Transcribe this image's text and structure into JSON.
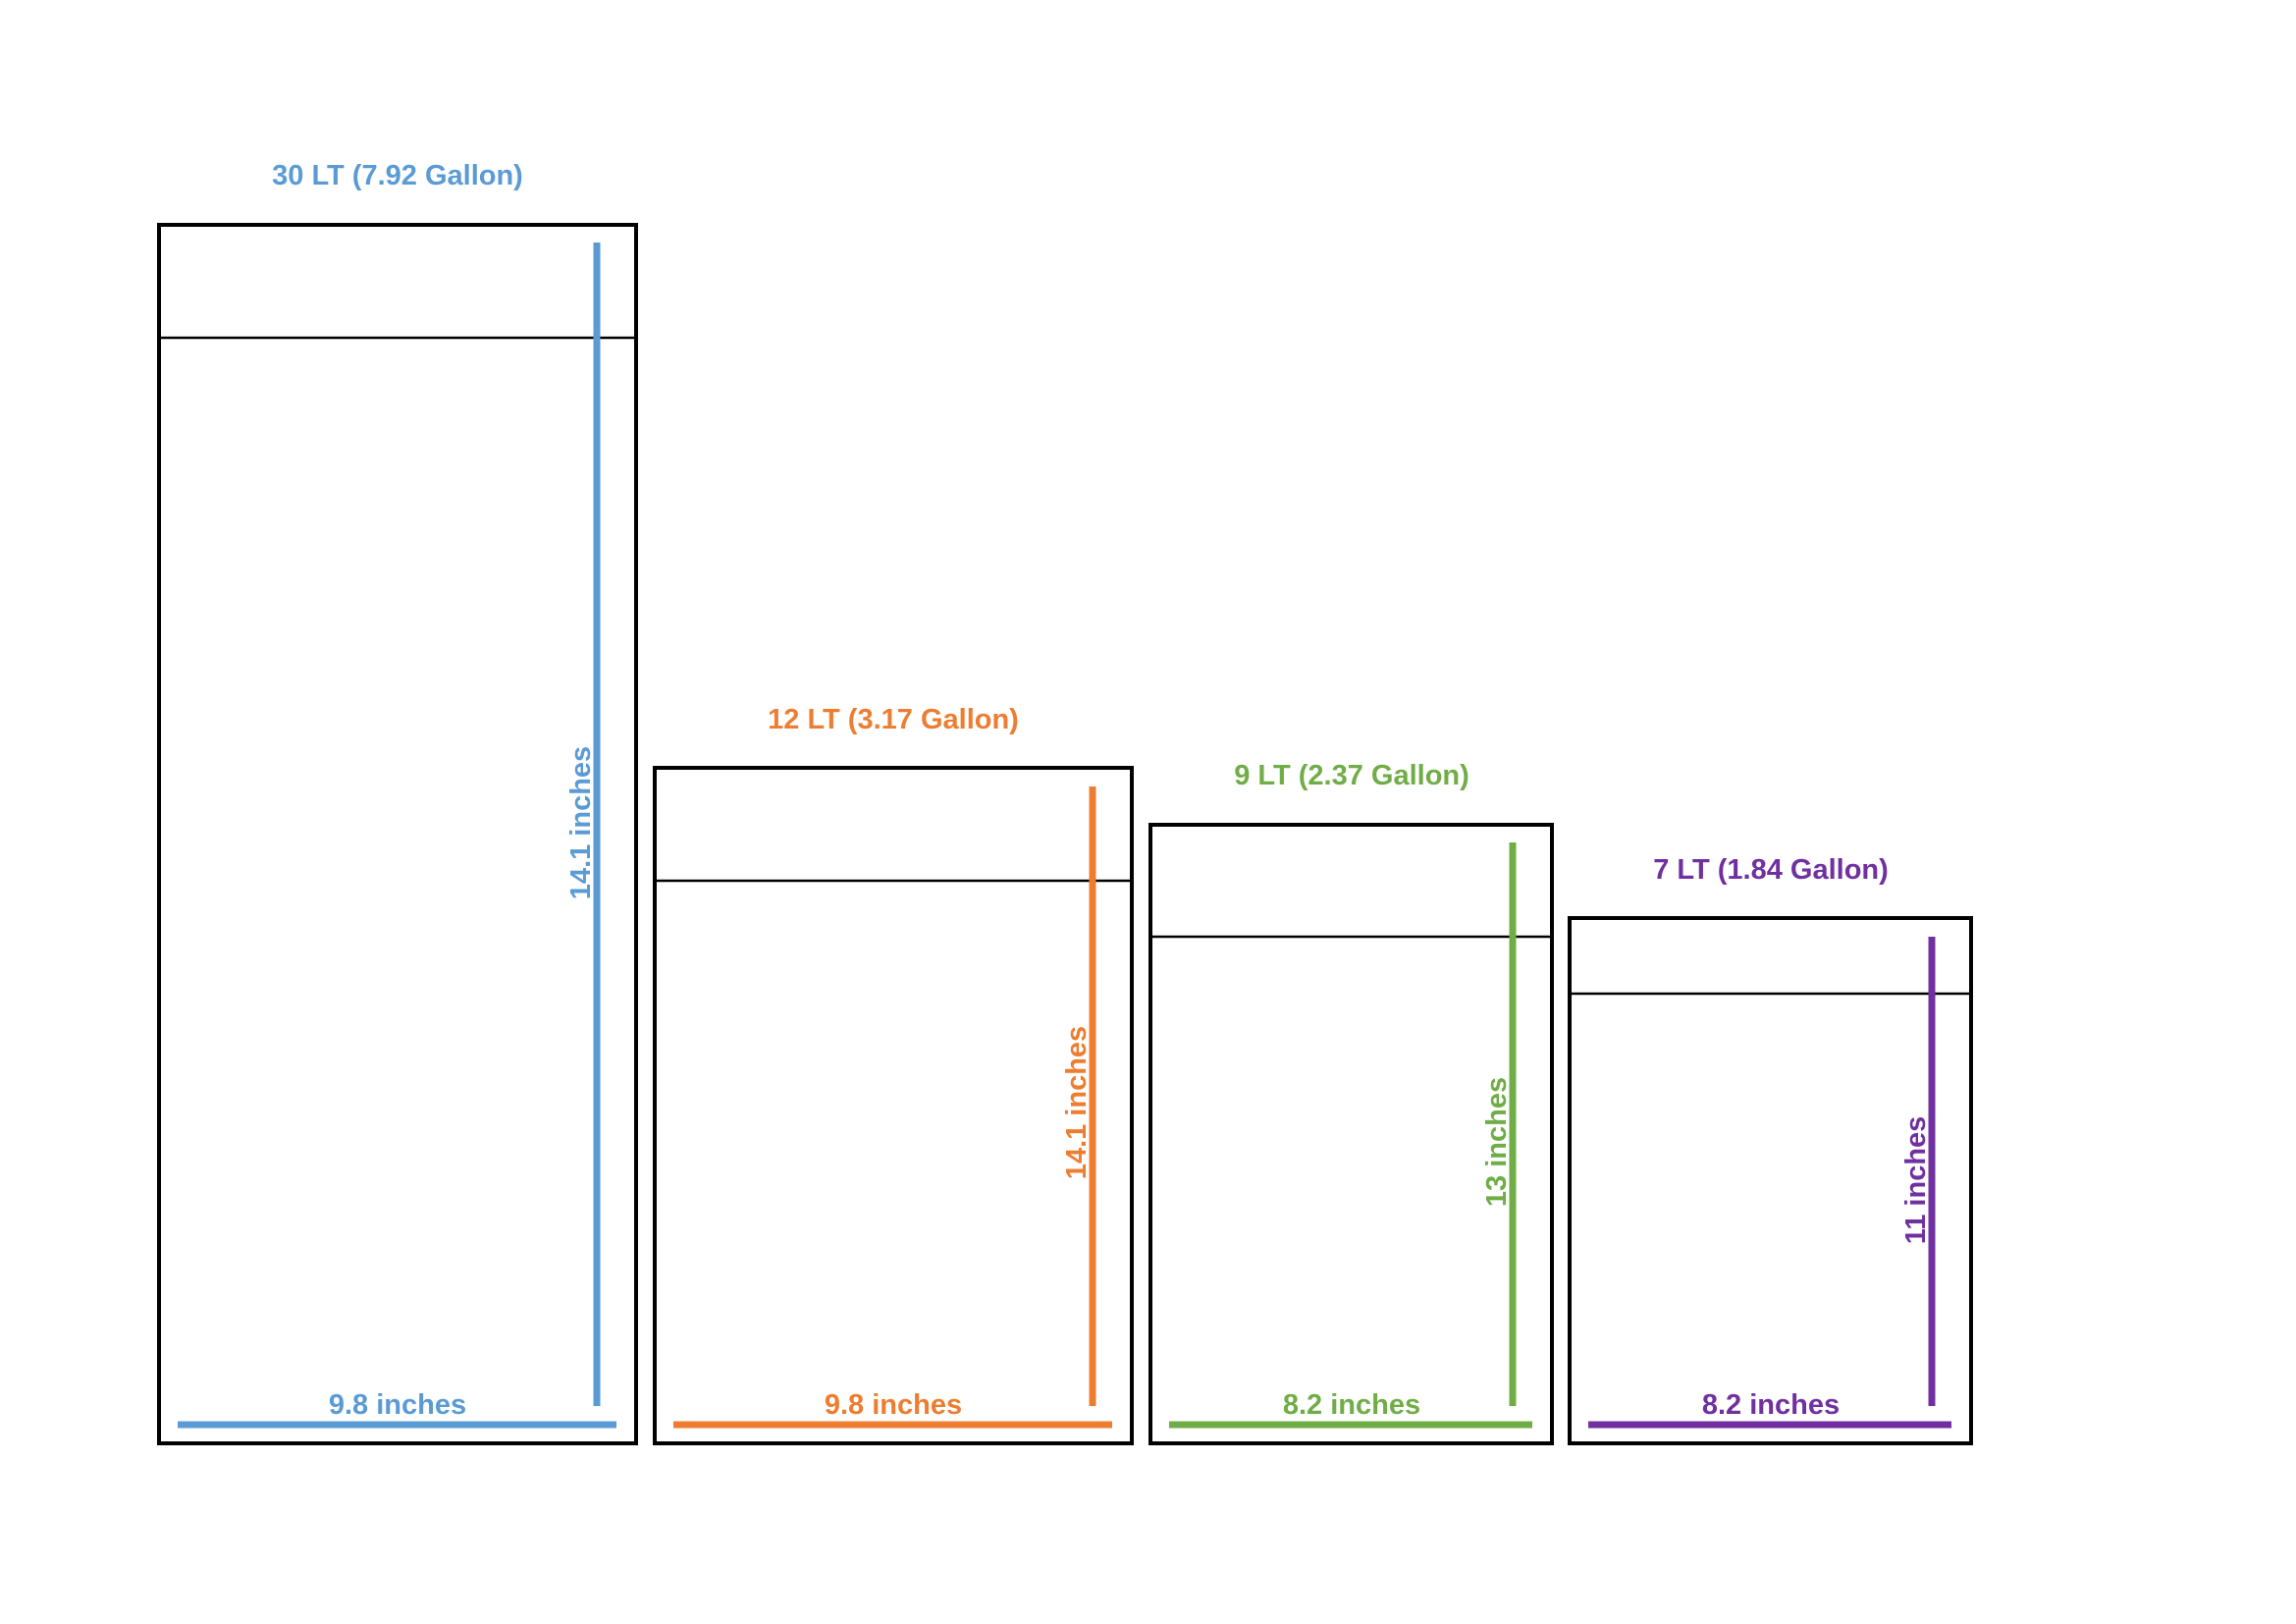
{
  "containers": [
    {
      "capacity_label": "30 LT (7.92 Gallon)",
      "height_label": "14.1 inches",
      "width_label": "9.8 inches",
      "color": "#5B9BD5"
    },
    {
      "capacity_label": "12 LT (3.17 Gallon)",
      "height_label": "14.1 inches",
      "width_label": "9.8 inches",
      "color": "#ED7D31"
    },
    {
      "capacity_label": "9 LT (2.37 Gallon)",
      "height_label": "13 inches",
      "width_label": "8.2 inches",
      "color": "#70AD47"
    },
    {
      "capacity_label": "7 LT (1.84 Gallon)",
      "height_label": "11 inches",
      "width_label": "8.2 inches",
      "color": "#7030A0"
    }
  ],
  "colors": {
    "outline": "#000000",
    "background": "#ffffff"
  }
}
